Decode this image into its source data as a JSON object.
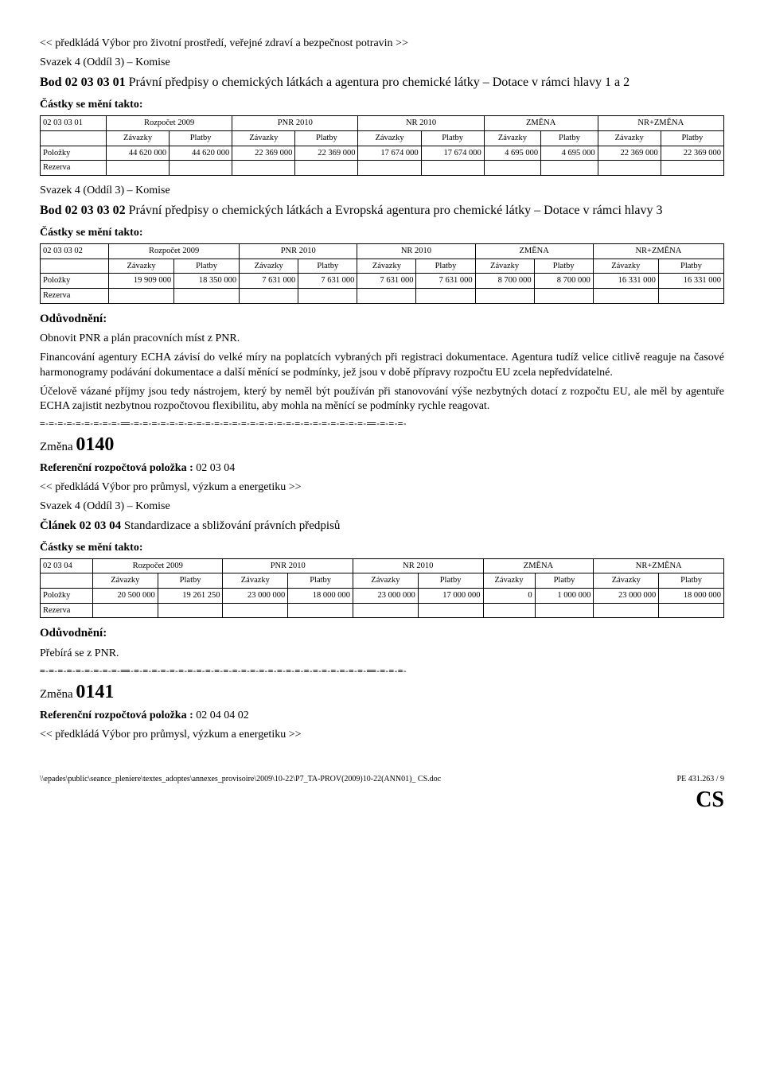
{
  "intro": {
    "submitted_by_env": "<< předkládá Výbor pro životní prostředí, veřejné zdraví a bezpečnost potravin >>",
    "volume": "Svazek 4 (Oddíl 3) – Komise",
    "item_title_prefix": "Bod 02 03 03 01",
    "item_title_rest": " Právní předpisy o chemických látkách a agentura pro chemické látky – Dotace v rámci hlavy 1 a 2",
    "amounts_label": "Částky se mění takto:"
  },
  "table_headers": {
    "zavazky": "Závazky",
    "platby": "Platby",
    "rozpocet": "Rozpočet 2009",
    "pnr": "PNR 2010",
    "nr": "NR 2010",
    "zmena": "ZMĚNA",
    "nrzmena": "NR+ZMĚNA",
    "polozky": "Položky",
    "rezerva": "Rezerva"
  },
  "table1": {
    "code": "02 03 03 01",
    "row": [
      "44 620 000",
      "44 620 000",
      "22 369 000",
      "22 369 000",
      "17 674 000",
      "17 674 000",
      "4 695 000",
      "4 695 000",
      "22 369 000",
      "22 369 000"
    ]
  },
  "mid": {
    "volume": "Svazek 4 (Oddíl 3) – Komise",
    "item_title_prefix": "Bod 02 03 03 02",
    "item_title_rest": " Právní předpisy o chemických látkách a Evropská agentura pro chemické látky – Dotace v rámci hlavy 3",
    "amounts_label": "Částky se mění takto:"
  },
  "table2": {
    "code": "02 03 03 02",
    "row": [
      "19 909 000",
      "18 350 000",
      "7 631 000",
      "7 631 000",
      "7 631 000",
      "7 631 000",
      "8 700 000",
      "8 700 000",
      "16 331 000",
      "16 331 000"
    ]
  },
  "justification": {
    "label": "Odůvodnění:",
    "p1": "Obnovit PNR a plán pracovních míst z PNR.",
    "p2": "Financování agentury ECHA závisí do velké míry na poplatcích vybraných při registraci dokumentace. Agentura tudíž velice citlivě reaguje na časové harmonogramy podávání dokumentace a další měnící se podmínky, jež jsou v době přípravy rozpočtu EU zcela nepředvídatelné.",
    "p3": "Účelově vázané příjmy jsou tedy nástrojem, který by neměl být používán při stanovování výše nezbytných dotací z rozpočtu EU, ale měl by agentuře ECHA zajistit nezbytnou rozpočtovou flexibilitu, aby mohla na měnící se podmínky rychle reagovat."
  },
  "separator": "=-=-=-=-=-=-=-=-=-==-=-=-=-=-=-=-=-=-=-=-=-=-=-=-=-=-=-=-=-=-=-=-=-=-=-=-==-=-=-=-",
  "change0140": {
    "label": "Změna",
    "num": "0140",
    "ref_label": "Referenční rozpočtová položka :",
    "ref_code": " 02 03 04",
    "submitted_by": "<< předkládá Výbor pro průmysl, výzkum a energetiku >>",
    "volume": "Svazek 4 (Oddíl 3) – Komise",
    "article_prefix": "Článek 02 03 04",
    "article_rest": " Standardizace a sbližování právních předpisů",
    "amounts_label": "Částky se mění takto:"
  },
  "table3": {
    "code": "02 03 04",
    "row": [
      "20 500 000",
      "19 261 250",
      "23 000 000",
      "18 000 000",
      "23 000 000",
      "17 000 000",
      "0",
      "1 000 000",
      "23 000 000",
      "18 000 000"
    ]
  },
  "justification2": {
    "label": "Odůvodnění:",
    "p1": "Přebírá se z PNR."
  },
  "change0141": {
    "label": "Změna",
    "num": "0141",
    "ref_label": "Referenční rozpočtová položka :",
    "ref_code": " 02 04 04 02",
    "submitted_by": "<< předkládá Výbor pro průmysl, výzkum a energetiku >>"
  },
  "footer": {
    "left": "\\\\epades\\public\\seance_pleniere\\textes_adoptes\\annexes_provisoire\\2009\\10-22\\P7_TA-PROV(2009)10-22(ANN01)_ CS.doc",
    "right": "PE 431.263 / 9",
    "cs": "CS"
  }
}
